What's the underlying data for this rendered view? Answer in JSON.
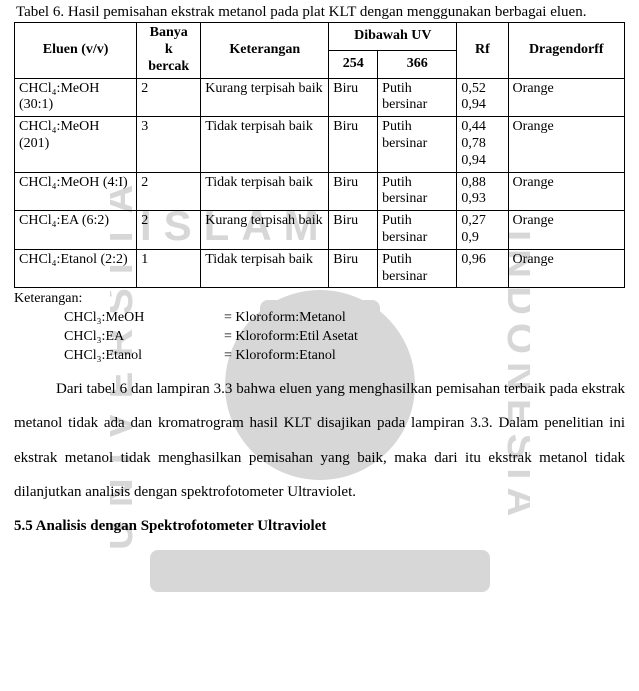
{
  "caption_prefix": "Tabel 6.",
  "caption_text": "Hasil pemisahan ekstrak metanol pada plat KLT dengan menggunakan berbagai eluen.",
  "table": {
    "headers": {
      "eluen": "Eluen (v/v)",
      "banyak": "Banya\nk\nbercak",
      "keterangan": "Keterangan",
      "dibawah_uv": "Dibawah UV",
      "uv254": "254",
      "uv366": "366",
      "rf": "Rf",
      "dragendorff": "Dragendorff"
    },
    "rows": [
      {
        "eluen": "CHCl₄:MeOH (30:1)",
        "banyak": "2",
        "ket": "Kurang terpisah baik",
        "uv254": "Biru",
        "uv366": "Putih bersinar",
        "rf": "0,52 0,94",
        "drag": "Orange"
      },
      {
        "eluen": "CHCl₄:MeOH (201)",
        "banyak": "3",
        "ket": "Tidak terpisah baik",
        "uv254": "Biru",
        "uv366": "Putih bersinar",
        "rf": "0,44 0,78 0,94",
        "drag": "Orange"
      },
      {
        "eluen": "CHCl₄:MeOH (4:I)",
        "banyak": "2",
        "ket": "Tidak terpisah baik",
        "uv254": "Biru",
        "uv366": "Putih bersinar",
        "rf": "0,88 0,93",
        "drag": "Orange"
      },
      {
        "eluen": "CHCl₄:EA (6:2)",
        "banyak": "2",
        "ket": "Kurang terpisah baik",
        "uv254": "Biru",
        "uv366": "Putih bersinar",
        "rf": "0,27 0,9",
        "drag": "Orange"
      },
      {
        "eluen": "CHCl₄:Etanol (2:2)",
        "banyak": "1",
        "ket": "Tidak terpisah baik",
        "uv254": "Biru",
        "uv366": "Putih bersinar",
        "rf": "0,96",
        "drag": "Orange"
      }
    ]
  },
  "legend": {
    "title": "Keterangan:",
    "items": [
      {
        "label": "CHCl₃:MeOH",
        "value": "= Kloroform:Metanol"
      },
      {
        "label": "CHCl₃:EA",
        "value": "= Kloroform:Etil Asetat"
      },
      {
        "label": "CHCl₃:Etanol",
        "value": "= Kloroform:Etanol"
      }
    ]
  },
  "paragraph": "Dari tabel 6 dan lampiran 3.3 bahwa eluen yang menghasilkan pemisahan terbaik pada ekstrak metanol tidak ada dan kromatrogram hasil KLT disajikan pada lampiran 3.3. Dalam penelitian ini ekstrak metanol tidak menghasilkan pemisahan yang baik, maka dari itu ekstrak metanol tidak dilanjutkan analisis dengan spektrofotometer Ultraviolet.",
  "heading": "5.5 Analisis dengan Spektrofotometer Ultraviolet",
  "watermark_color": "#d7d7d7"
}
